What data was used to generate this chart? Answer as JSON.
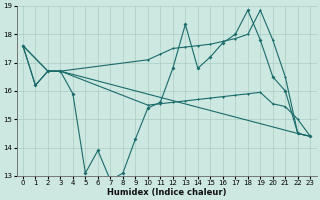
{
  "xlabel": "Humidex (Indice chaleur)",
  "xlim": [
    -0.5,
    23.5
  ],
  "ylim": [
    13,
    19
  ],
  "yticks": [
    13,
    14,
    15,
    16,
    17,
    18,
    19
  ],
  "xticks": [
    0,
    1,
    2,
    3,
    4,
    5,
    6,
    7,
    8,
    9,
    10,
    11,
    12,
    13,
    14,
    15,
    16,
    17,
    18,
    19,
    20,
    21,
    22,
    23
  ],
  "bg_color": "#cce8e0",
  "grid_color": "#aaccc4",
  "line_color": "#1a6b6b",
  "line1": {
    "x": [
      0,
      1,
      2,
      3,
      4,
      5,
      6,
      7,
      8,
      9,
      10,
      11,
      12,
      13,
      14,
      15,
      16,
      17,
      18,
      19,
      20,
      21,
      22,
      23
    ],
    "y": [
      17.6,
      16.2,
      16.7,
      16.7,
      15.9,
      13.1,
      13.9,
      12.85,
      13.1,
      14.3,
      15.4,
      15.6,
      16.8,
      18.35,
      16.8,
      17.2,
      17.7,
      18.0,
      18.85,
      17.8,
      16.5,
      16.0,
      14.5,
      14.4
    ]
  },
  "line2": {
    "x": [
      0,
      2,
      3,
      10,
      11,
      12,
      13,
      14,
      15,
      16,
      17,
      18,
      19,
      20,
      21,
      22,
      23
    ],
    "y": [
      17.6,
      16.7,
      16.7,
      17.1,
      17.3,
      17.5,
      17.55,
      17.6,
      17.65,
      17.75,
      17.85,
      18.0,
      18.85,
      17.8,
      16.5,
      14.5,
      14.4
    ]
  },
  "line3": {
    "x": [
      0,
      2,
      3,
      10,
      11,
      12,
      13,
      14,
      15,
      16,
      17,
      18,
      19,
      20,
      21,
      22,
      23
    ],
    "y": [
      17.6,
      16.7,
      16.7,
      15.5,
      15.55,
      15.6,
      15.65,
      15.7,
      15.75,
      15.8,
      15.85,
      15.9,
      15.95,
      15.55,
      15.45,
      15.0,
      14.4
    ]
  },
  "line4": {
    "x": [
      0,
      1,
      2,
      3,
      22,
      23
    ],
    "y": [
      17.6,
      16.2,
      16.7,
      16.7,
      14.5,
      14.4
    ]
  }
}
